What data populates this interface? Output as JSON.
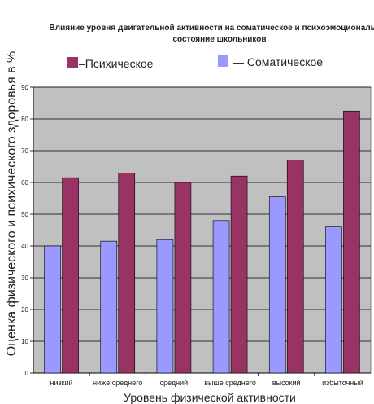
{
  "chart_data": {
    "type": "bar",
    "title_line1": "Влияние уровня двигательной активности на соматическое и психоэмоциональное",
    "title_line2": "состояние школьников",
    "xlabel": "Уровень физической активности",
    "ylabel": "Оценка физического и психического здоровья в %",
    "ylim": [
      0,
      90
    ],
    "yticks": [
      0,
      10,
      20,
      30,
      40,
      50,
      60,
      70,
      80,
      90
    ],
    "grid": true,
    "legend_position": "top",
    "categories": [
      "низкий",
      "ниже среднего",
      "средний",
      "выше среднего",
      "высокий",
      "избыточный"
    ],
    "series": [
      {
        "name": "Соматическое",
        "legend_label": "— Соматическое",
        "color": "#9999ff",
        "values": [
          40,
          41.5,
          42,
          48,
          55.5,
          46
        ]
      },
      {
        "name": "Психическое",
        "legend_label": "–Психическое",
        "color": "#993366",
        "values": [
          61.5,
          63,
          60,
          62,
          67,
          82.5
        ]
      }
    ],
    "plot_background": "#c0c0c0"
  }
}
